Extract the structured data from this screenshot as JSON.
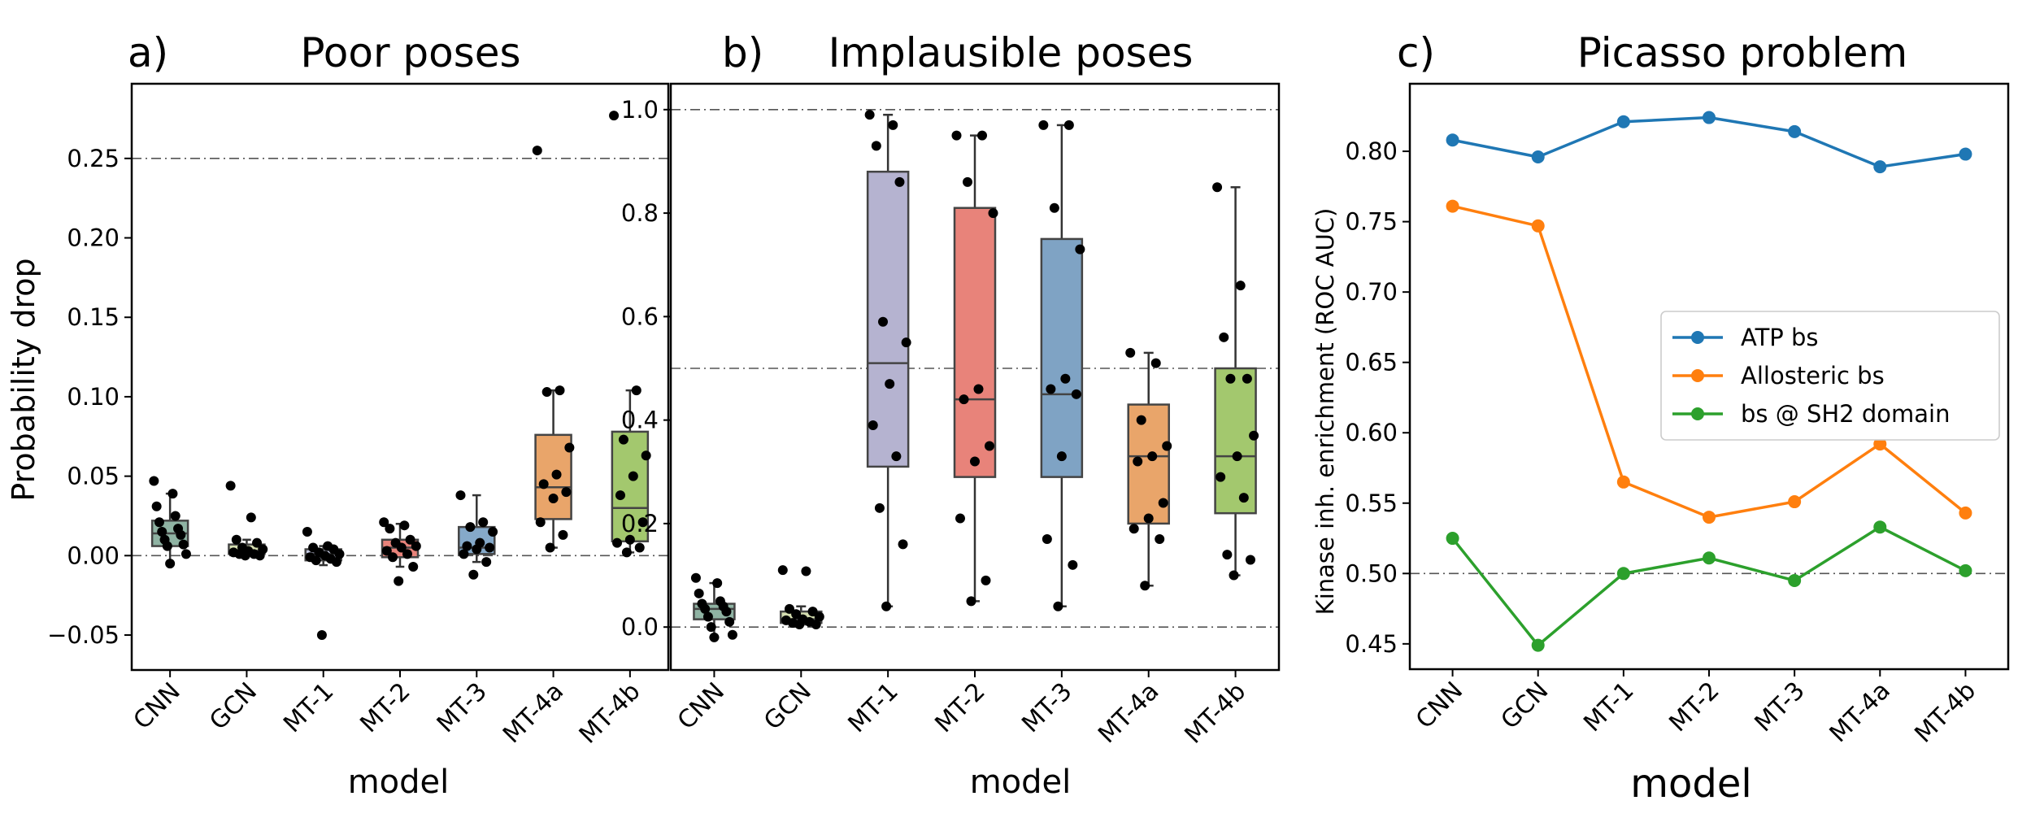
{
  "chart_data": [
    {
      "type": "box",
      "panel_label": "a)",
      "title": "Poor poses",
      "xlabel": "model",
      "ylabel": "Probability drop",
      "ylim": [
        -0.072,
        0.297
      ],
      "yticks": [
        -0.05,
        0.0,
        0.05,
        0.1,
        0.15,
        0.2,
        0.25
      ],
      "ytick_labels": [
        "−0.05",
        "0.00",
        "0.05",
        "0.10",
        "0.15",
        "0.20",
        "0.25"
      ],
      "reference_lines": [
        0.0,
        0.25
      ],
      "categories": [
        "CNN",
        "GCN",
        "MT-1",
        "MT-2",
        "MT-3",
        "MT-4a",
        "MT-4b"
      ],
      "colors": [
        "#8fb3a3",
        "#d4ddb0",
        "#c3c8e0",
        "#e8837a",
        "#85a9c9",
        "#e9a56a",
        "#a3c86e"
      ],
      "boxes": [
        {
          "q1": 0.006,
          "median": 0.014,
          "q3": 0.022,
          "whisker_low": -0.005,
          "whisker_high": 0.039,
          "points": [
            0.047,
            0.039,
            0.031,
            0.025,
            0.021,
            0.017,
            0.015,
            0.013,
            0.01,
            0.007,
            0.006,
            0.001,
            -0.005
          ]
        },
        {
          "q1": 0.001,
          "median": 0.003,
          "q3": 0.007,
          "whisker_low": 0.0,
          "whisker_high": 0.01,
          "points": [
            0.044,
            0.024,
            0.01,
            0.008,
            0.005,
            0.004,
            0.003,
            0.002,
            0.001,
            0.001,
            0.0,
            0.0
          ]
        },
        {
          "q1": -0.003,
          "median": 0.001,
          "q3": 0.004,
          "whisker_low": -0.006,
          "whisker_high": 0.006,
          "points": [
            0.015,
            0.006,
            0.005,
            0.004,
            0.002,
            0.001,
            0.0,
            -0.001,
            -0.002,
            -0.003,
            -0.004,
            -0.05
          ]
        },
        {
          "q1": -0.001,
          "median": 0.005,
          "q3": 0.01,
          "whisker_low": -0.007,
          "whisker_high": 0.02,
          "points": [
            0.021,
            0.019,
            0.017,
            0.01,
            0.008,
            0.006,
            0.005,
            0.003,
            0.001,
            -0.001,
            -0.007,
            -0.016
          ]
        },
        {
          "q1": 0.001,
          "median": 0.005,
          "q3": 0.018,
          "whisker_low": -0.004,
          "whisker_high": 0.038,
          "points": [
            0.038,
            0.021,
            0.018,
            0.015,
            0.008,
            0.006,
            0.005,
            0.004,
            0.001,
            -0.004,
            -0.012
          ]
        },
        {
          "q1": 0.023,
          "median": 0.043,
          "q3": 0.076,
          "whisker_low": 0.005,
          "whisker_high": 0.104,
          "points": [
            0.255,
            0.104,
            0.103,
            0.068,
            0.051,
            0.045,
            0.04,
            0.036,
            0.021,
            0.013,
            0.005
          ]
        },
        {
          "q1": 0.009,
          "median": 0.03,
          "q3": 0.078,
          "whisker_low": 0.002,
          "whisker_high": 0.104,
          "points": [
            0.277,
            0.104,
            0.073,
            0.063,
            0.05,
            0.038,
            0.021,
            0.01,
            0.008,
            0.005,
            0.002
          ]
        }
      ]
    },
    {
      "type": "box",
      "panel_label": "b)",
      "title": "Implausible poses",
      "xlabel": "model",
      "ylabel": "",
      "ylim": [
        -0.083,
        1.05
      ],
      "yticks": [
        0.0,
        0.2,
        0.4,
        0.6,
        0.8,
        1.0
      ],
      "ytick_labels": [
        "0.0",
        "0.2",
        "0.4",
        "0.6",
        "0.8",
        "1.0"
      ],
      "reference_lines": [
        0.0,
        0.5,
        1.0
      ],
      "categories": [
        "CNN",
        "GCN",
        "MT-1",
        "MT-2",
        "MT-3",
        "MT-4a",
        "MT-4b"
      ],
      "colors": [
        "#8fb3a3",
        "#d4ddb0",
        "#b5b3d0",
        "#e8837a",
        "#7fa3c4",
        "#e9a56a",
        "#a3c86e"
      ],
      "boxes": [
        {
          "q1": 0.015,
          "median": 0.035,
          "q3": 0.045,
          "whisker_low": -0.02,
          "whisker_high": 0.085,
          "points": [
            0.095,
            0.085,
            0.065,
            0.05,
            0.045,
            0.04,
            0.035,
            0.03,
            0.02,
            0.01,
            0.0,
            -0.015,
            -0.02
          ]
        },
        {
          "q1": 0.008,
          "median": 0.015,
          "q3": 0.03,
          "whisker_low": 0.005,
          "whisker_high": 0.04,
          "points": [
            0.11,
            0.108,
            0.035,
            0.03,
            0.025,
            0.02,
            0.015,
            0.013,
            0.01,
            0.008,
            0.005,
            0.005
          ]
        },
        {
          "q1": 0.31,
          "median": 0.51,
          "q3": 0.88,
          "whisker_low": 0.04,
          "whisker_high": 0.99,
          "points": [
            0.99,
            0.97,
            0.93,
            0.86,
            0.59,
            0.55,
            0.47,
            0.39,
            0.33,
            0.23,
            0.16,
            0.04
          ]
        },
        {
          "q1": 0.29,
          "median": 0.44,
          "q3": 0.81,
          "whisker_low": 0.05,
          "whisker_high": 0.95,
          "points": [
            0.95,
            0.95,
            0.86,
            0.8,
            0.46,
            0.44,
            0.35,
            0.32,
            0.21,
            0.09,
            0.05
          ]
        },
        {
          "q1": 0.29,
          "median": 0.45,
          "q3": 0.75,
          "whisker_low": 0.04,
          "whisker_high": 0.97,
          "points": [
            0.97,
            0.97,
            0.81,
            0.73,
            0.48,
            0.46,
            0.45,
            0.33,
            0.17,
            0.12,
            0.04
          ]
        },
        {
          "q1": 0.2,
          "median": 0.33,
          "q3": 0.43,
          "whisker_low": 0.08,
          "whisker_high": 0.53,
          "points": [
            0.53,
            0.51,
            0.4,
            0.35,
            0.33,
            0.32,
            0.24,
            0.21,
            0.19,
            0.17,
            0.08
          ]
        },
        {
          "q1": 0.22,
          "median": 0.33,
          "q3": 0.5,
          "whisker_low": 0.1,
          "whisker_high": 0.85,
          "points": [
            0.85,
            0.66,
            0.56,
            0.48,
            0.48,
            0.37,
            0.33,
            0.29,
            0.25,
            0.14,
            0.13,
            0.1
          ]
        }
      ]
    },
    {
      "type": "line",
      "panel_label": "c)",
      "title": "Picasso problem",
      "xlabel": "model",
      "ylabel": "Kinase inh. enrichment (ROC AUC)",
      "ylim": [
        0.432,
        0.848
      ],
      "yticks": [
        0.45,
        0.5,
        0.55,
        0.6,
        0.65,
        0.7,
        0.75,
        0.8
      ],
      "ytick_labels": [
        "0.45",
        "0.50",
        "0.55",
        "0.60",
        "0.65",
        "0.70",
        "0.75",
        "0.80"
      ],
      "reference_lines": [
        0.5
      ],
      "categories": [
        "CNN",
        "GCN",
        "MT-1",
        "MT-2",
        "MT-3",
        "MT-4a",
        "MT-4b"
      ],
      "legend_position": "center-right",
      "series": [
        {
          "name": "ATP bs",
          "color": "#1f77b4",
          "values": [
            0.808,
            0.796,
            0.821,
            0.824,
            0.814,
            0.789,
            0.798
          ]
        },
        {
          "name": "Allosteric bs",
          "color": "#ff7f0e",
          "values": [
            0.761,
            0.747,
            0.565,
            0.54,
            0.551,
            0.592,
            0.543
          ]
        },
        {
          "name": "bs @ SH2 domain",
          "color": "#2ca02c",
          "values": [
            0.525,
            0.449,
            0.5,
            0.511,
            0.495,
            0.533,
            0.502
          ]
        }
      ]
    }
  ]
}
